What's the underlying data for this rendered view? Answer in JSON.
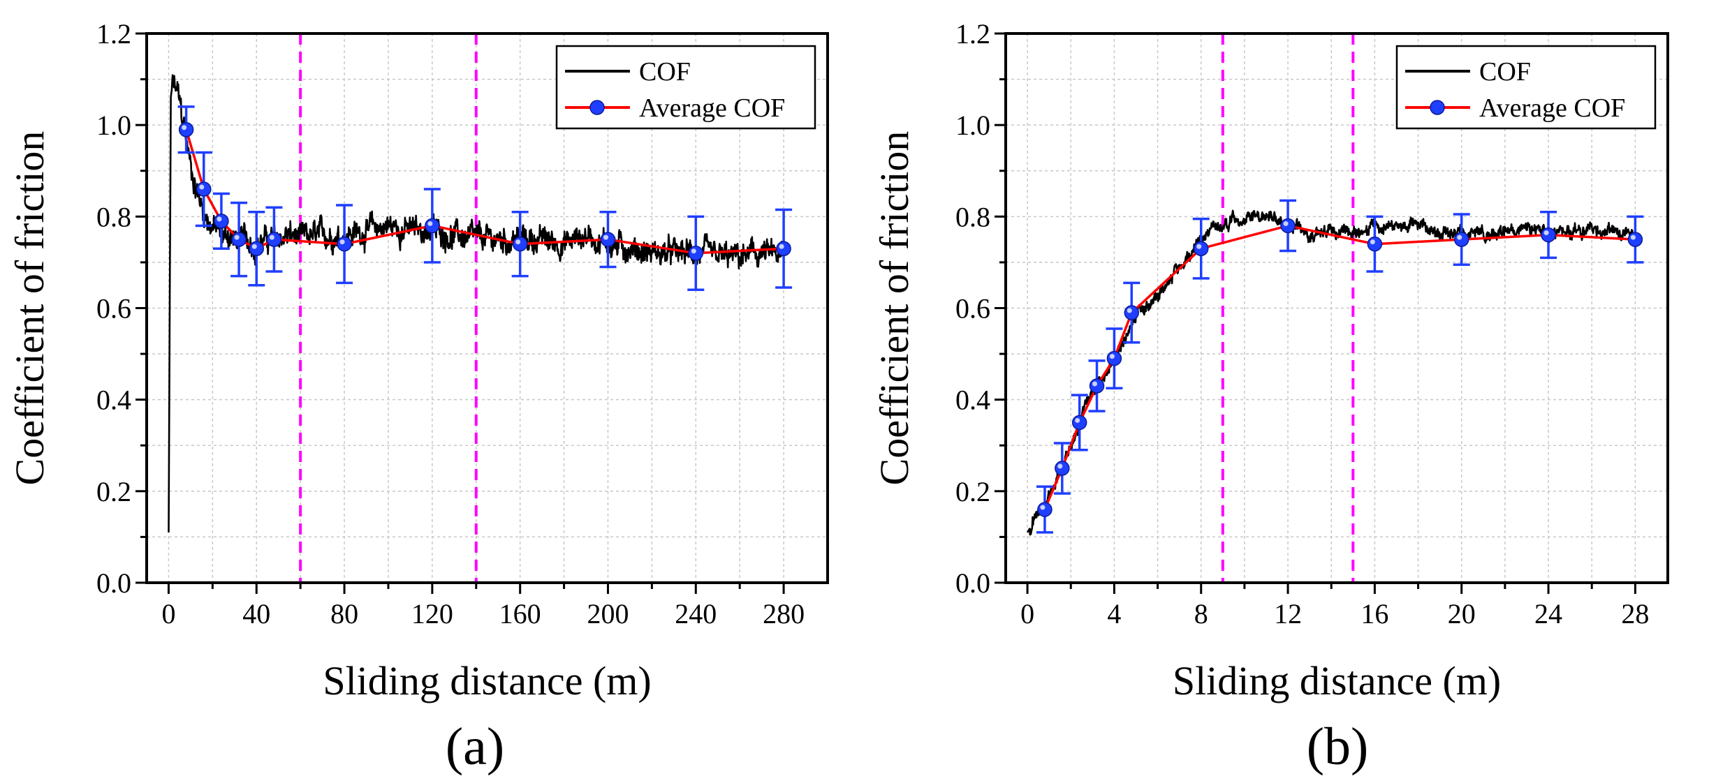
{
  "chart_data": [
    {
      "type": "line",
      "panel_label": "(a)",
      "xlabel": "Sliding distance (m)",
      "ylabel": "Coefficient of friction",
      "xlim": [
        -10,
        300
      ],
      "ylim": [
        0,
        1.2
      ],
      "x_ticks": [
        0,
        40,
        80,
        120,
        160,
        200,
        240,
        280
      ],
      "x_tick_labels": [
        "0",
        "40",
        "80",
        "120",
        "160",
        "200",
        "240",
        "280"
      ],
      "y_ticks": [
        0.0,
        0.2,
        0.4,
        0.6,
        0.8,
        1.0,
        1.2
      ],
      "y_tick_labels": [
        "0.0",
        "0.2",
        "0.4",
        "0.6",
        "0.8",
        "1.0",
        "1.2"
      ],
      "grid": true,
      "legend_position": "top-right",
      "legend": [
        "COF",
        "Average COF"
      ],
      "vertical_lines": [
        60,
        140
      ],
      "colors": {
        "cof": "#000000",
        "average": "#ff0000",
        "marker": "#1f3fff",
        "vline": "#ff00ff",
        "grid": "#c8c8c8"
      },
      "series": [
        {
          "name": "COF",
          "x": [
            0,
            0.5,
            1,
            2,
            3,
            4,
            5,
            6,
            7,
            8,
            9,
            10,
            12,
            14,
            16,
            18,
            20,
            22,
            25,
            28,
            30,
            35,
            40,
            45,
            50,
            55,
            60,
            70,
            80,
            90,
            100,
            110,
            120,
            130,
            140,
            150,
            160,
            170,
            180,
            190,
            200,
            210,
            220,
            230,
            240,
            250,
            260,
            270,
            280
          ],
          "y": [
            0.11,
            0.6,
            1.06,
            1.09,
            1.08,
            1.07,
            1.05,
            1.02,
            1.0,
            0.97,
            0.94,
            0.91,
            0.87,
            0.84,
            0.81,
            0.79,
            0.78,
            0.77,
            0.76,
            0.76,
            0.75,
            0.75,
            0.74,
            0.75,
            0.75,
            0.76,
            0.75,
            0.76,
            0.76,
            0.77,
            0.78,
            0.77,
            0.77,
            0.76,
            0.75,
            0.75,
            0.75,
            0.75,
            0.74,
            0.76,
            0.74,
            0.73,
            0.72,
            0.72,
            0.72,
            0.71,
            0.71,
            0.72,
            0.71
          ],
          "noise_amplitude": 0.04
        },
        {
          "name": "Average COF",
          "x": [
            8,
            16,
            24,
            32,
            40,
            48,
            80,
            120,
            160,
            200,
            240,
            280
          ],
          "y": [
            0.99,
            0.86,
            0.79,
            0.75,
            0.73,
            0.75,
            0.74,
            0.78,
            0.74,
            0.75,
            0.72,
            0.73
          ],
          "error": [
            0.05,
            0.08,
            0.06,
            0.08,
            0.08,
            0.07,
            0.085,
            0.08,
            0.07,
            0.06,
            0.08,
            0.085
          ]
        }
      ]
    },
    {
      "type": "line",
      "panel_label": "(b)",
      "xlabel": "Sliding distance (m)",
      "ylabel": "Coefficient of friction",
      "xlim": [
        -1,
        29.5
      ],
      "ylim": [
        0,
        1.2
      ],
      "x_ticks": [
        0,
        4,
        8,
        12,
        16,
        20,
        24,
        28
      ],
      "x_tick_labels": [
        "0",
        "4",
        "8",
        "12",
        "16",
        "20",
        "24",
        "28"
      ],
      "y_ticks": [
        0.0,
        0.2,
        0.4,
        0.6,
        0.8,
        1.0,
        1.2
      ],
      "y_tick_labels": [
        "0.0",
        "0.2",
        "0.4",
        "0.6",
        "0.8",
        "1.0",
        "1.2"
      ],
      "grid": true,
      "legend_position": "top-right",
      "legend": [
        "COF",
        "Average COF"
      ],
      "vertical_lines": [
        9,
        15
      ],
      "colors": {
        "cof": "#000000",
        "average": "#ff0000",
        "marker": "#1f3fff",
        "vline": "#ff00ff",
        "grid": "#c8c8c8"
      },
      "series": [
        {
          "name": "COF",
          "x": [
            0,
            0.5,
            1,
            1.5,
            2,
            2.5,
            3,
            3.5,
            4,
            4.5,
            5,
            5.5,
            6,
            6.5,
            7,
            7.5,
            8,
            8.5,
            9,
            9.5,
            10,
            10.5,
            11,
            11.5,
            12,
            13,
            14,
            15,
            16,
            17,
            18,
            19,
            20,
            21,
            22,
            23,
            24,
            25,
            26,
            27,
            28
          ],
          "y": [
            0.11,
            0.15,
            0.19,
            0.24,
            0.3,
            0.36,
            0.42,
            0.45,
            0.5,
            0.54,
            0.58,
            0.61,
            0.63,
            0.66,
            0.69,
            0.72,
            0.75,
            0.78,
            0.78,
            0.79,
            0.79,
            0.8,
            0.8,
            0.79,
            0.78,
            0.77,
            0.77,
            0.77,
            0.78,
            0.78,
            0.78,
            0.77,
            0.76,
            0.76,
            0.77,
            0.77,
            0.76,
            0.77,
            0.77,
            0.77,
            0.76
          ],
          "noise_amplitude": 0.02
        },
        {
          "name": "Average COF",
          "x": [
            0.8,
            1.6,
            2.4,
            3.2,
            4,
            4.8,
            8,
            12,
            16,
            20,
            24,
            28
          ],
          "y": [
            0.16,
            0.25,
            0.35,
            0.43,
            0.49,
            0.59,
            0.73,
            0.78,
            0.74,
            0.75,
            0.76,
            0.75
          ],
          "error": [
            0.05,
            0.055,
            0.06,
            0.055,
            0.065,
            0.065,
            0.065,
            0.055,
            0.06,
            0.055,
            0.05,
            0.05
          ]
        }
      ]
    }
  ]
}
